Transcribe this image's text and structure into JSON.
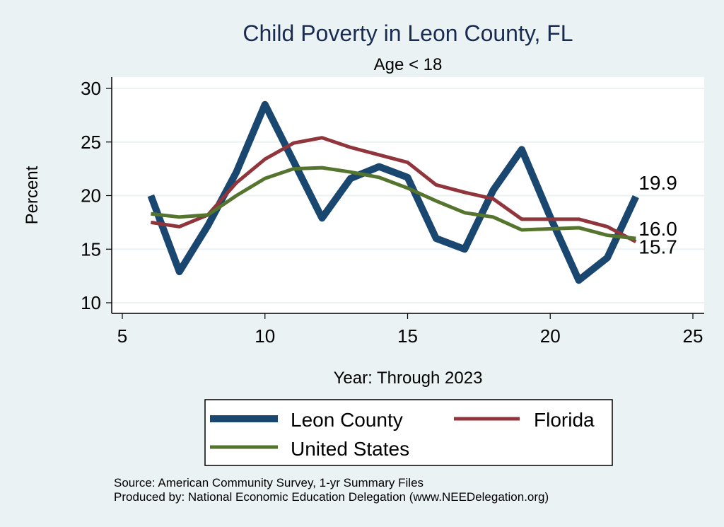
{
  "chart_data": {
    "type": "line",
    "title": "Child Poverty in Leon County, FL",
    "subtitle": "Age < 18",
    "xlabel": "Year: Through 2023",
    "ylabel": "Percent",
    "xlim": [
      5,
      25
    ],
    "ylim": [
      10,
      30
    ],
    "xticks": [
      5,
      10,
      15,
      20,
      25
    ],
    "yticks": [
      10,
      15,
      20,
      25,
      30
    ],
    "grid": true,
    "x": [
      6,
      7,
      8,
      9,
      10,
      11,
      12,
      13,
      14,
      15,
      16,
      17,
      18,
      19,
      20,
      21,
      22,
      23
    ],
    "series": [
      {
        "name": "Leon County",
        "color": "#1a476f",
        "values": [
          20.0,
          12.9,
          17.2,
          22.2,
          28.5,
          23.2,
          17.9,
          21.6,
          22.7,
          21.7,
          16.0,
          15.0,
          20.5,
          24.3,
          18.0,
          12.1,
          14.2,
          19.9
        ],
        "end_label": "19.9"
      },
      {
        "name": "Florida",
        "color": "#90353b",
        "values": [
          17.5,
          17.1,
          18.2,
          21.2,
          23.4,
          24.9,
          25.4,
          24.5,
          23.8,
          23.1,
          21.0,
          20.3,
          19.7,
          17.8,
          17.8,
          17.8,
          17.1,
          15.7
        ],
        "end_label": "15.7"
      },
      {
        "name": "United States",
        "color": "#55752f",
        "values": [
          18.3,
          18.0,
          18.2,
          20.0,
          21.6,
          22.5,
          22.6,
          22.2,
          21.7,
          20.7,
          19.5,
          18.4,
          18.0,
          16.8,
          16.9,
          17.0,
          16.3,
          16.0
        ],
        "end_label": "16.0"
      }
    ],
    "legend": {
      "placement": "bottom",
      "entries": [
        "Leon County",
        "Florida",
        "United States"
      ]
    },
    "notes": [
      "Source: American Community Survey, 1-yr Summary Files",
      "Produced by: National Economic Education Delegation (www.NEEDelegation.org)"
    ]
  }
}
